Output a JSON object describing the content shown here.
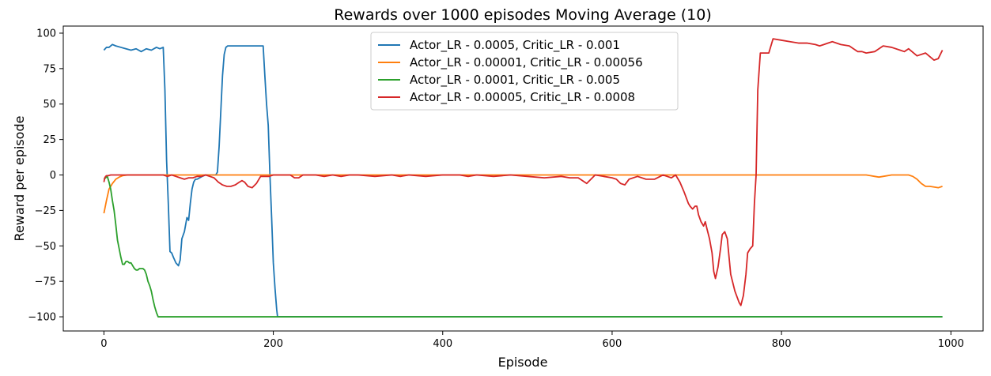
{
  "chart_data": {
    "type": "line",
    "title": "Rewards over 1000 episodes Moving Average (10)",
    "xlabel": "Episode",
    "ylabel": "Reward per episode",
    "xlim": [
      -48,
      1038
    ],
    "ylim": [
      -110,
      105
    ],
    "xticks": [
      0,
      200,
      400,
      600,
      800,
      1000
    ],
    "yticks": [
      -100,
      -75,
      -50,
      -25,
      0,
      25,
      50,
      75,
      100
    ],
    "grid": false,
    "legend_position": "upper-center",
    "series": [
      {
        "name": "Actor_LR - 0.0005, Critic_LR - 0.001",
        "color": "#1f77b4",
        "x": [
          0,
          3,
          6,
          10,
          14,
          20,
          26,
          32,
          38,
          44,
          50,
          56,
          62,
          66,
          70,
          72,
          74,
          76,
          78,
          80,
          82,
          85,
          88,
          90,
          92,
          95,
          98,
          100,
          102,
          104,
          106,
          108,
          110,
          113,
          116,
          120,
          124,
          128,
          132,
          134,
          136,
          138,
          140,
          142,
          144,
          146,
          150,
          160,
          170,
          180,
          188,
          190,
          192,
          194,
          196,
          198,
          200,
          202,
          204,
          205,
          210,
          250,
          350,
          450,
          550,
          650,
          750,
          850,
          950,
          990
        ],
        "y": [
          88,
          90,
          90,
          92,
          91,
          90,
          89,
          88,
          89,
          87,
          89,
          88,
          90,
          89,
          90,
          60,
          10,
          -20,
          -54,
          -55,
          -58,
          -62,
          -64,
          -60,
          -45,
          -40,
          -30,
          -32,
          -20,
          -10,
          -5,
          -3,
          -3,
          -2,
          -1,
          0,
          0,
          0,
          0,
          2,
          20,
          45,
          70,
          85,
          90,
          91,
          91,
          91,
          91,
          91,
          91,
          70,
          50,
          35,
          0,
          -30,
          -62,
          -80,
          -95,
          -100,
          -100,
          -100,
          -100,
          -100,
          -100,
          -100,
          -100,
          -100,
          -100,
          -100
        ]
      },
      {
        "name": "Actor_LR - 0.00001, Critic_LR - 0.00056",
        "color": "#ff7f0e",
        "x": [
          0,
          3,
          6,
          10,
          14,
          18,
          22,
          28,
          35,
          45,
          60,
          100,
          200,
          300,
          400,
          500,
          600,
          700,
          800,
          900,
          905,
          910,
          915,
          920,
          930,
          940,
          950,
          955,
          960,
          965,
          970,
          975,
          980,
          985,
          990
        ],
        "y": [
          -27,
          -18,
          -10,
          -6,
          -3,
          -1.5,
          -0.5,
          0,
          0,
          0,
          0,
          0,
          0,
          0,
          0,
          0,
          0,
          0,
          0,
          0,
          -0.5,
          -1,
          -1.5,
          -1,
          0,
          0,
          0,
          -1,
          -3,
          -6,
          -8,
          -8,
          -8.5,
          -9,
          -8
        ]
      },
      {
        "name": "Actor_LR - 0.0001, Critic_LR - 0.005",
        "color": "#2ca02c",
        "x": [
          0,
          2,
          4,
          6,
          8,
          10,
          12,
          14,
          16,
          18,
          20,
          22,
          24,
          26,
          28,
          30,
          32,
          34,
          36,
          38,
          40,
          42,
          44,
          46,
          48,
          50,
          52,
          54,
          56,
          58,
          60,
          62,
          64,
          66,
          68,
          70,
          72,
          74,
          100,
          200,
          400,
          600,
          800,
          990
        ],
        "y": [
          -3,
          -2,
          -1,
          -5,
          -10,
          -18,
          -25,
          -35,
          -46,
          -52,
          -58,
          -63,
          -63,
          -61,
          -61,
          -62,
          -62,
          -64,
          -66,
          -67,
          -67,
          -66,
          -66,
          -66,
          -67,
          -70,
          -75,
          -78,
          -82,
          -88,
          -93,
          -97,
          -100,
          -100,
          -100,
          -100,
          -100,
          -100,
          -100,
          -100,
          -100,
          -100,
          -100,
          -100
        ]
      },
      {
        "name": "Actor_LR - 0.00005, Critic_LR - 0.0008",
        "color": "#d62728",
        "x": [
          0,
          1,
          2,
          3,
          5,
          8,
          12,
          20,
          30,
          40,
          50,
          60,
          70,
          75,
          80,
          85,
          90,
          95,
          100,
          105,
          110,
          115,
          120,
          125,
          130,
          135,
          140,
          145,
          150,
          155,
          160,
          163,
          166,
          170,
          175,
          180,
          185,
          190,
          195,
          200,
          210,
          220,
          225,
          230,
          235,
          240,
          250,
          260,
          270,
          280,
          290,
          300,
          320,
          340,
          350,
          360,
          380,
          400,
          420,
          430,
          440,
          460,
          480,
          500,
          520,
          540,
          550,
          560,
          570,
          575,
          580,
          590,
          600,
          605,
          610,
          615,
          620,
          630,
          640,
          650,
          660,
          665,
          670,
          675,
          680,
          685,
          690,
          692,
          695,
          698,
          700,
          702,
          705,
          708,
          710,
          712,
          715,
          718,
          720,
          722,
          725,
          728,
          730,
          733,
          736,
          740,
          745,
          750,
          752,
          755,
          758,
          760,
          763,
          766,
          768,
          770,
          772,
          775,
          780,
          785,
          790,
          800,
          810,
          820,
          830,
          840,
          845,
          850,
          855,
          860,
          870,
          880,
          890,
          895,
          900,
          910,
          920,
          930,
          940,
          945,
          950,
          960,
          970,
          980,
          985,
          990
        ],
        "y": [
          -5,
          -2,
          -1,
          -0.5,
          -0.5,
          0,
          0,
          0,
          0,
          0,
          0,
          0,
          0,
          -1,
          0,
          -1,
          -2,
          -3,
          -2,
          -2,
          -1,
          -1,
          0,
          -1,
          -2,
          -5,
          -7,
          -8,
          -8,
          -7,
          -5,
          -4,
          -5,
          -8,
          -9,
          -6,
          -1,
          -1,
          -1,
          0,
          0,
          0,
          -2,
          -2,
          0,
          0,
          0,
          -1,
          0,
          -1,
          0,
          0,
          -1,
          0,
          -1,
          0,
          -1,
          0,
          0,
          -1,
          0,
          -1,
          0,
          -1,
          -2,
          -1,
          -2,
          -2,
          -6,
          -3,
          0,
          -1,
          -2,
          -3,
          -6,
          -7,
          -3,
          -1,
          -3,
          -3,
          0,
          -1,
          -2,
          0,
          -5,
          -12,
          -20,
          -22,
          -24,
          -22,
          -22,
          -28,
          -33,
          -36,
          -33,
          -38,
          -45,
          -55,
          -68,
          -73,
          -65,
          -52,
          -42,
          -40,
          -45,
          -70,
          -82,
          -90,
          -92,
          -85,
          -70,
          -55,
          -52,
          -50,
          -20,
          0,
          60,
          86,
          86,
          86,
          96,
          95,
          94,
          93,
          93,
          92,
          91,
          92,
          93,
          94,
          92,
          91,
          87,
          87,
          86,
          87,
          91,
          90,
          88,
          87,
          89,
          84,
          86,
          81,
          82,
          88
        ]
      }
    ]
  }
}
